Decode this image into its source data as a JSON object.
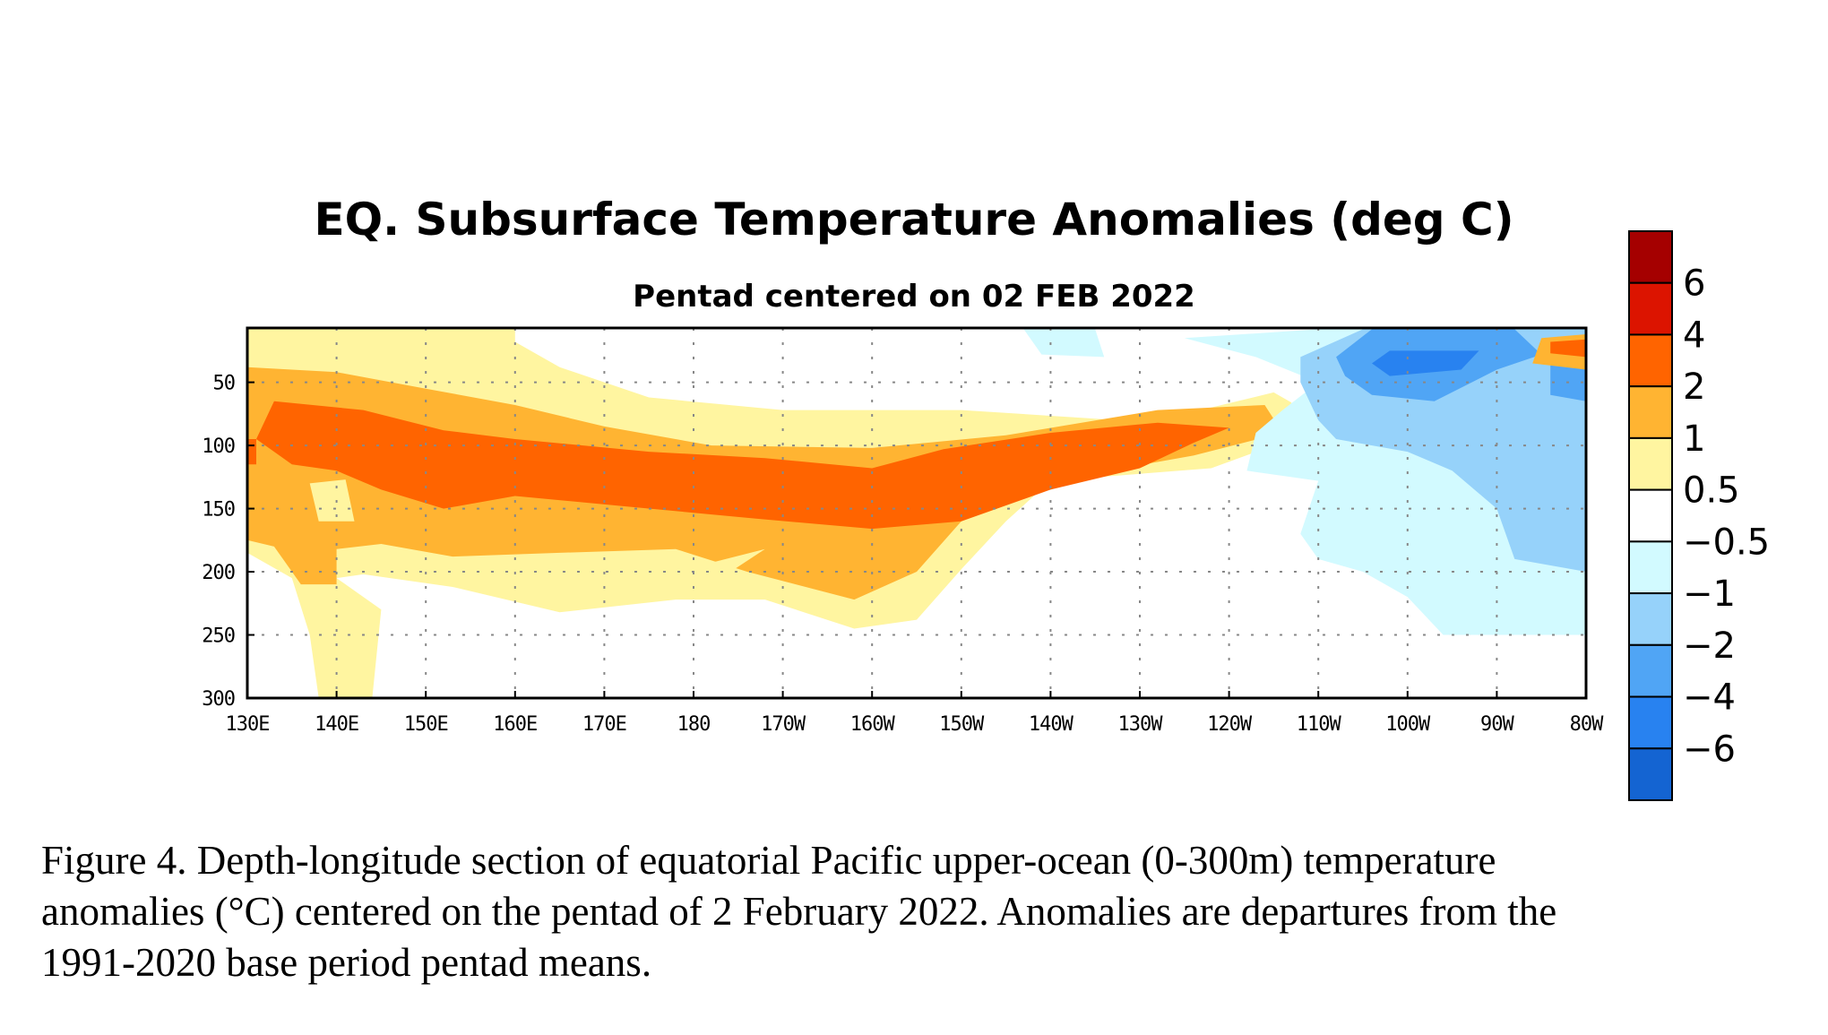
{
  "chart_data": {
    "type": "heatmap",
    "title": "EQ. Subsurface Temperature Anomalies (deg C)",
    "subtitle": "Pentad centered on 02 FEB 2022",
    "x_tick_labels": [
      "130E",
      "140E",
      "150E",
      "160E",
      "170E",
      "180",
      "170W",
      "160W",
      "150W",
      "140W",
      "130W",
      "120W",
      "110W",
      "100W",
      "90W",
      "80W"
    ],
    "y_tick_labels": [
      "50",
      "100",
      "150",
      "200",
      "250",
      "300"
    ],
    "y_ticks": [
      50,
      100,
      150,
      200,
      250,
      300
    ],
    "xlim_deg_east": [
      130,
      280
    ],
    "ylim_depth_m": [
      300,
      7
    ],
    "y_inverted": true,
    "grid": "dotted",
    "colorbar": {
      "labels": [
        "6",
        "4",
        "2",
        "1",
        "0.5",
        "−0.5",
        "−1",
        "−2",
        "−4",
        "−6"
      ],
      "colors_top_to_bottom": [
        "#a50000",
        "#dc1400",
        "#ff6400",
        "#ffb432",
        "#fff5a0",
        "#ffffff",
        "#d2faff",
        "#96d2fa",
        "#50a5f5",
        "#2882f0",
        "#1464d2"
      ],
      "placement": "right"
    },
    "field_regions": [
      {
        "level": "0.5",
        "color": "#fff5a0",
        "polygon": [
          [
            130,
            8
          ],
          [
            160,
            8
          ],
          [
            160,
            18
          ],
          [
            165,
            38
          ],
          [
            175,
            62
          ],
          [
            190,
            72
          ],
          [
            210,
            72
          ],
          [
            232,
            82
          ],
          [
            238,
            70
          ],
          [
            245,
            58
          ],
          [
            247,
            66
          ],
          [
            245,
            100
          ],
          [
            238,
            118
          ],
          [
            220,
            128
          ],
          [
            215,
            160
          ],
          [
            210,
            198
          ],
          [
            205,
            238
          ],
          [
            198,
            245
          ],
          [
            188,
            222
          ],
          [
            178,
            222
          ],
          [
            165,
            232
          ],
          [
            153,
            212
          ],
          [
            143,
            202
          ],
          [
            140,
            205
          ],
          [
            145,
            230
          ],
          [
            144,
            300
          ],
          [
            138,
            300
          ],
          [
            137,
            250
          ],
          [
            135,
            205
          ],
          [
            130,
            185
          ]
        ]
      },
      {
        "level": "1",
        "color": "#ffb432",
        "polygon": [
          [
            130,
            38
          ],
          [
            140,
            42
          ],
          [
            150,
            55
          ],
          [
            160,
            68
          ],
          [
            170,
            85
          ],
          [
            182,
            100
          ],
          [
            200,
            102
          ],
          [
            215,
            92
          ],
          [
            232,
            72
          ],
          [
            244,
            68
          ],
          [
            246,
            90
          ],
          [
            236,
            108
          ],
          [
            220,
            128
          ],
          [
            210,
            160
          ],
          [
            205,
            200
          ],
          [
            198,
            222
          ],
          [
            186,
            200
          ],
          [
            178,
            182
          ],
          [
            165,
            185
          ],
          [
            153,
            188
          ],
          [
            145,
            178
          ],
          [
            140,
            182
          ],
          [
            140,
            210
          ],
          [
            136,
            210
          ],
          [
            133,
            180
          ],
          [
            130,
            175
          ]
        ]
      },
      {
        "level": "1-ring",
        "color": "#fff5a0",
        "polygon": [
          [
            137,
            130
          ],
          [
            141,
            127
          ],
          [
            142,
            160
          ],
          [
            138,
            160
          ]
        ]
      },
      {
        "level": "1-ring",
        "color": "#fff5a0",
        "polygon": [
          [
            178,
            200
          ],
          [
            188,
            182
          ],
          [
            182,
            210
          ],
          [
            175,
            212
          ]
        ]
      },
      {
        "level": "2",
        "color": "#ff6400",
        "polygon": [
          [
            133,
            65
          ],
          [
            143,
            72
          ],
          [
            152,
            88
          ],
          [
            160,
            95
          ],
          [
            175,
            105
          ],
          [
            188,
            110
          ],
          [
            200,
            118
          ],
          [
            208,
            103
          ],
          [
            220,
            90
          ],
          [
            232,
            82
          ],
          [
            240,
            86
          ],
          [
            236,
            98
          ],
          [
            230,
            118
          ],
          [
            220,
            135
          ],
          [
            210,
            160
          ],
          [
            200,
            166
          ],
          [
            187,
            158
          ],
          [
            172,
            148
          ],
          [
            160,
            140
          ],
          [
            152,
            150
          ],
          [
            145,
            135
          ],
          [
            140,
            120
          ],
          [
            135,
            115
          ],
          [
            131,
            95
          ]
        ]
      },
      {
        "level": "2",
        "color": "#ff6400",
        "polygon": [
          [
            130,
            95
          ],
          [
            131,
            95
          ],
          [
            131,
            115
          ],
          [
            130,
            115
          ]
        ]
      },
      {
        "level": "-0.5",
        "color": "#d2faff",
        "polygon": [
          [
            250,
            8
          ],
          [
            280,
            8
          ],
          [
            280,
            250
          ],
          [
            264,
            250
          ],
          [
            260,
            220
          ],
          [
            255,
            200
          ],
          [
            250,
            190
          ],
          [
            248,
            170
          ],
          [
            250,
            128
          ],
          [
            242,
            120
          ],
          [
            243,
            90
          ],
          [
            246,
            72
          ],
          [
            250,
            50
          ],
          [
            243,
            30
          ],
          [
            235,
            15
          ]
        ]
      },
      {
        "level": "-0.5",
        "color": "#d2faff",
        "polygon": [
          [
            217,
            8
          ],
          [
            225,
            8
          ],
          [
            226,
            30
          ],
          [
            219,
            28
          ]
        ]
      },
      {
        "level": "-1",
        "color": "#96d2fa",
        "polygon": [
          [
            255,
            8
          ],
          [
            280,
            8
          ],
          [
            280,
            200
          ],
          [
            272,
            190
          ],
          [
            270,
            150
          ],
          [
            265,
            120
          ],
          [
            260,
            105
          ],
          [
            252,
            95
          ],
          [
            250,
            80
          ],
          [
            248,
            50
          ],
          [
            248,
            30
          ]
        ]
      },
      {
        "level": "-2",
        "color": "#50a5f5",
        "polygon": [
          [
            256,
            8
          ],
          [
            272,
            8
          ],
          [
            275,
            28
          ],
          [
            270,
            40
          ],
          [
            263,
            65
          ],
          [
            256,
            60
          ],
          [
            253,
            45
          ],
          [
            252,
            30
          ]
        ]
      },
      {
        "level": "-2",
        "color": "#50a5f5",
        "polygon": [
          [
            276,
            30
          ],
          [
            280,
            30
          ],
          [
            280,
            65
          ],
          [
            276,
            60
          ]
        ]
      },
      {
        "level": "-4",
        "color": "#2882f0",
        "polygon": [
          [
            258,
            25
          ],
          [
            268,
            25
          ],
          [
            266,
            40
          ],
          [
            258,
            45
          ],
          [
            256,
            35
          ]
        ]
      },
      {
        "level": "1",
        "color": "#ffb432",
        "polygon": [
          [
            275,
            15
          ],
          [
            280,
            12
          ],
          [
            280,
            40
          ],
          [
            274,
            35
          ]
        ]
      },
      {
        "level": "2",
        "color": "#ff6400",
        "polygon": [
          [
            276,
            18
          ],
          [
            280,
            16
          ],
          [
            280,
            30
          ],
          [
            276,
            27
          ]
        ]
      }
    ]
  },
  "caption": {
    "line1": "Figure 4. Depth-longitude section of equatorial Pacific upper-ocean (0-300m) temperature",
    "line2": "anomalies (°C) centered on the pentad of 2 February 2022. Anomalies are departures from the",
    "line3": "1991-2020 base period pentad means."
  }
}
